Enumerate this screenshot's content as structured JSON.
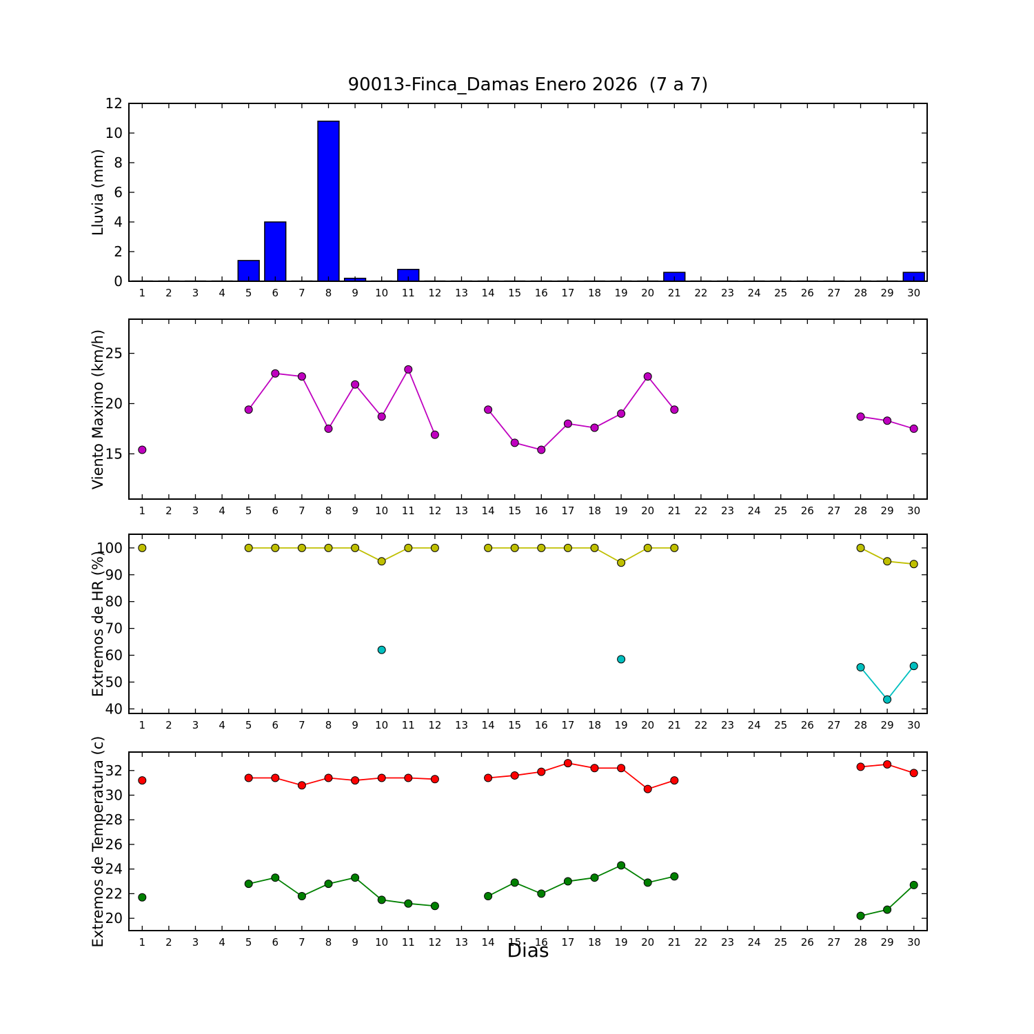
{
  "title": "90013-Finca_Damas Enero 2026  (7 a 7)",
  "xlabel": "Dias",
  "xlim": [
    0.5,
    30.5
  ],
  "xticks": [
    1,
    2,
    3,
    4,
    5,
    6,
    7,
    8,
    9,
    10,
    11,
    12,
    13,
    14,
    15,
    16,
    17,
    18,
    19,
    20,
    21,
    22,
    23,
    24,
    25,
    26,
    27,
    28,
    29,
    30
  ],
  "chart_data": [
    {
      "type": "bar",
      "ylabel": "Lluvia (mm)",
      "ylim": [
        0,
        12
      ],
      "yticks": [
        0,
        2,
        4,
        6,
        8,
        10,
        12
      ],
      "color": "#0000FF",
      "x": [
        1,
        2,
        3,
        4,
        5,
        6,
        7,
        8,
        9,
        10,
        11,
        12,
        13,
        14,
        15,
        16,
        17,
        18,
        19,
        20,
        21,
        22,
        23,
        24,
        25,
        26,
        27,
        28,
        29,
        30
      ],
      "values": [
        0,
        0,
        0,
        0,
        1.4,
        4.0,
        0,
        10.8,
        0.2,
        0,
        0.8,
        0,
        0,
        0,
        0,
        0,
        0,
        0,
        0,
        0,
        0.6,
        0,
        0,
        0,
        0,
        0,
        0,
        0,
        0,
        0.6
      ]
    },
    {
      "type": "line",
      "ylabel": "Viento Maximo (km/h)",
      "ylim": [
        10.5,
        28.4
      ],
      "yticks": [
        15,
        20,
        25
      ],
      "series": [
        {
          "name": "viento-maximo",
          "color": "#BF00BF",
          "points": [
            [
              1,
              15.4
            ],
            [
              5,
              19.4
            ],
            [
              6,
              23.0
            ],
            [
              7,
              22.7
            ],
            [
              8,
              17.5
            ],
            [
              9,
              21.9
            ],
            [
              10,
              18.7
            ],
            [
              11,
              23.4
            ],
            [
              12,
              16.9
            ],
            [
              14,
              19.4
            ],
            [
              15,
              16.1
            ],
            [
              16,
              15.4
            ],
            [
              17,
              18.0
            ],
            [
              18,
              17.6
            ],
            [
              19,
              19.0
            ],
            [
              20,
              22.7
            ],
            [
              21,
              19.4
            ],
            [
              28,
              18.7
            ],
            [
              29,
              18.3
            ],
            [
              30,
              17.5
            ]
          ]
        }
      ]
    },
    {
      "type": "line",
      "ylabel": "Extremos de HR (%)",
      "ylim": [
        38.3,
        105.1
      ],
      "yticks": [
        40,
        50,
        60,
        70,
        80,
        90,
        100
      ],
      "series": [
        {
          "name": "hr-max",
          "color": "#BFBF00",
          "points": [
            [
              1,
              100
            ],
            [
              5,
              100
            ],
            [
              6,
              100
            ],
            [
              7,
              100
            ],
            [
              8,
              100
            ],
            [
              9,
              100
            ],
            [
              10,
              95
            ],
            [
              11,
              100
            ],
            [
              12,
              100
            ],
            [
              14,
              100
            ],
            [
              15,
              100
            ],
            [
              16,
              100
            ],
            [
              17,
              100
            ],
            [
              18,
              100
            ],
            [
              19,
              94.5
            ],
            [
              20,
              100
            ],
            [
              21,
              100
            ],
            [
              28,
              100
            ],
            [
              29,
              95
            ],
            [
              30,
              94
            ]
          ]
        },
        {
          "name": "hr-min",
          "color": "#00BFBF",
          "points": [
            [
              10,
              62
            ],
            [
              19,
              58.5
            ],
            [
              28,
              55.5
            ],
            [
              29,
              43.5
            ],
            [
              30,
              56
            ]
          ]
        }
      ]
    },
    {
      "type": "line",
      "ylabel": "Extremos de Temperatura (c)",
      "ylim": [
        19.0,
        33.5
      ],
      "yticks": [
        20,
        22,
        24,
        26,
        28,
        30,
        32
      ],
      "series": [
        {
          "name": "temp-max",
          "color": "#FF0000",
          "points": [
            [
              1,
              31.2
            ],
            [
              5,
              31.4
            ],
            [
              6,
              31.4
            ],
            [
              7,
              30.8
            ],
            [
              8,
              31.4
            ],
            [
              9,
              31.2
            ],
            [
              10,
              31.4
            ],
            [
              11,
              31.4
            ],
            [
              12,
              31.3
            ],
            [
              14,
              31.4
            ],
            [
              15,
              31.6
            ],
            [
              16,
              31.9
            ],
            [
              17,
              32.6
            ],
            [
              18,
              32.2
            ],
            [
              19,
              32.2
            ],
            [
              20,
              30.5
            ],
            [
              21,
              31.2
            ],
            [
              28,
              32.3
            ],
            [
              29,
              32.5
            ],
            [
              30,
              31.8
            ]
          ]
        },
        {
          "name": "temp-min",
          "color": "#008000",
          "points": [
            [
              1,
              21.7
            ],
            [
              5,
              22.8
            ],
            [
              6,
              23.3
            ],
            [
              7,
              21.8
            ],
            [
              8,
              22.8
            ],
            [
              9,
              23.3
            ],
            [
              10,
              21.5
            ],
            [
              11,
              21.2
            ],
            [
              12,
              21.0
            ],
            [
              14,
              21.8
            ],
            [
              15,
              22.9
            ],
            [
              16,
              22.0
            ],
            [
              17,
              23.0
            ],
            [
              18,
              23.3
            ],
            [
              19,
              24.3
            ],
            [
              20,
              22.9
            ],
            [
              21,
              23.4
            ],
            [
              28,
              20.2
            ],
            [
              29,
              20.7
            ],
            [
              30,
              22.7
            ]
          ]
        }
      ]
    }
  ]
}
